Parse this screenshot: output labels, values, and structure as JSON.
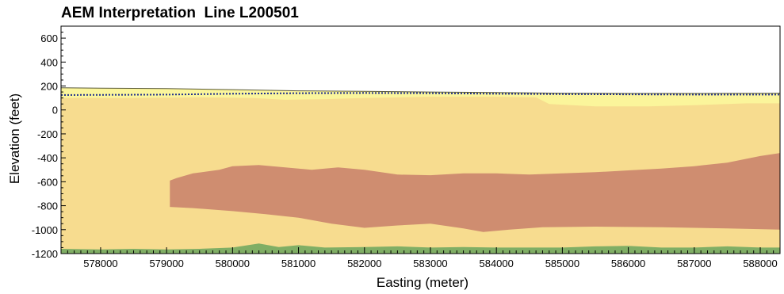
{
  "chart_data": {
    "type": "area",
    "title": "AEM Interpretation  Line L200501",
    "xlabel": "Easting (meter)",
    "ylabel": "Elevation (feet)",
    "xlim": [
      577400,
      588300
    ],
    "ylim": [
      -1200,
      700
    ],
    "x_ticks": [
      578000,
      579000,
      580000,
      581000,
      582000,
      583000,
      584000,
      585000,
      586000,
      587000,
      588000
    ],
    "y_ticks": [
      600,
      400,
      200,
      0,
      -200,
      -400,
      -600,
      -800,
      -1000,
      -1200
    ],
    "grid": false,
    "colors": {
      "background_unit": "#f7dc8f",
      "surface_unit": "#fbf59b",
      "clay_unit": "#cf8d70",
      "basal_unit": "#80ae65",
      "water_table": "#1f2f8c"
    },
    "series": [
      {
        "layer": "surface_unit_top",
        "points": [
          [
            577400,
            185
          ],
          [
            578000,
            182
          ],
          [
            579000,
            178
          ],
          [
            580000,
            170
          ],
          [
            581000,
            160
          ],
          [
            582000,
            155
          ],
          [
            583000,
            150
          ],
          [
            584000,
            145
          ],
          [
            585000,
            140
          ],
          [
            586000,
            138
          ],
          [
            587000,
            138
          ],
          [
            588300,
            140
          ]
        ]
      },
      {
        "layer": "surface_unit_base",
        "points": [
          [
            577400,
            100
          ],
          [
            578500,
            100
          ],
          [
            579500,
            105
          ],
          [
            580300,
            100
          ],
          [
            580800,
            85
          ],
          [
            581400,
            90
          ],
          [
            582000,
            100
          ],
          [
            583000,
            110
          ],
          [
            584000,
            110
          ],
          [
            584600,
            105
          ],
          [
            584800,
            50
          ],
          [
            585500,
            30
          ],
          [
            586300,
            30
          ],
          [
            587000,
            40
          ],
          [
            587800,
            55
          ],
          [
            588300,
            55
          ]
        ]
      },
      {
        "layer": "water_table",
        "points": [
          [
            577400,
            125
          ],
          [
            579000,
            128
          ],
          [
            580000,
            135
          ],
          [
            581000,
            140
          ],
          [
            582000,
            142
          ],
          [
            583000,
            140
          ],
          [
            584000,
            135
          ],
          [
            585000,
            132
          ],
          [
            586000,
            130
          ],
          [
            587000,
            128
          ],
          [
            588300,
            128
          ]
        ]
      },
      {
        "layer": "clay_unit_top",
        "points": [
          [
            579050,
            -590
          ],
          [
            579150,
            -570
          ],
          [
            579400,
            -530
          ],
          [
            579800,
            -500
          ],
          [
            580000,
            -470
          ],
          [
            580400,
            -460
          ],
          [
            580800,
            -480
          ],
          [
            581200,
            -500
          ],
          [
            581600,
            -480
          ],
          [
            582000,
            -500
          ],
          [
            582500,
            -540
          ],
          [
            583000,
            -545
          ],
          [
            583500,
            -530
          ],
          [
            584000,
            -530
          ],
          [
            584500,
            -540
          ],
          [
            585000,
            -530
          ],
          [
            585500,
            -520
          ],
          [
            586000,
            -505
          ],
          [
            586500,
            -490
          ],
          [
            587000,
            -470
          ],
          [
            587500,
            -440
          ],
          [
            588000,
            -385
          ],
          [
            588300,
            -360
          ]
        ]
      },
      {
        "layer": "clay_unit_base",
        "points": [
          [
            579050,
            -810
          ],
          [
            579400,
            -820
          ],
          [
            580000,
            -845
          ],
          [
            580500,
            -870
          ],
          [
            581000,
            -900
          ],
          [
            581500,
            -950
          ],
          [
            582000,
            -985
          ],
          [
            582500,
            -965
          ],
          [
            583000,
            -950
          ],
          [
            583500,
            -990
          ],
          [
            583800,
            -1020
          ],
          [
            584200,
            -1000
          ],
          [
            584700,
            -980
          ],
          [
            585500,
            -975
          ],
          [
            586500,
            -980
          ],
          [
            587500,
            -990
          ],
          [
            588300,
            -1000
          ]
        ]
      },
      {
        "layer": "basal_unit_top",
        "points": [
          [
            577400,
            -1160
          ],
          [
            578000,
            -1165
          ],
          [
            578500,
            -1160
          ],
          [
            579000,
            -1165
          ],
          [
            579500,
            -1160
          ],
          [
            580000,
            -1150
          ],
          [
            580400,
            -1115
          ],
          [
            580700,
            -1145
          ],
          [
            581000,
            -1130
          ],
          [
            581400,
            -1150
          ],
          [
            582000,
            -1145
          ],
          [
            582500,
            -1140
          ],
          [
            583000,
            -1150
          ],
          [
            583500,
            -1145
          ],
          [
            584000,
            -1150
          ],
          [
            584500,
            -1150
          ],
          [
            585000,
            -1150
          ],
          [
            585500,
            -1140
          ],
          [
            586000,
            -1135
          ],
          [
            586500,
            -1150
          ],
          [
            587000,
            -1150
          ],
          [
            587500,
            -1140
          ],
          [
            588000,
            -1150
          ],
          [
            588300,
            -1150
          ]
        ]
      }
    ]
  }
}
